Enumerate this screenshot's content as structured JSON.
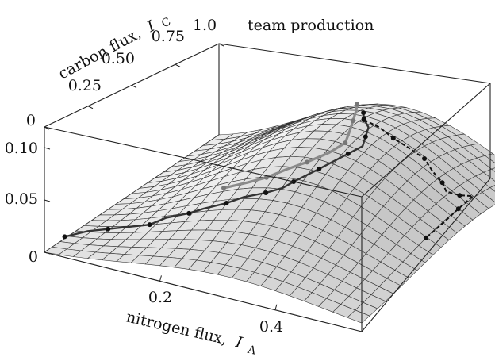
{
  "chart_data": {
    "type": "surface3d",
    "title": "team production",
    "axes": {
      "x": {
        "label": "nitrogen flux,",
        "symbol": "I",
        "subscript": "A",
        "range": [
          0,
          0.55
        ],
        "ticks": [
          "0.2",
          "0.4"
        ]
      },
      "y": {
        "label": "carbon flux,",
        "symbol": "I",
        "subscript": "C",
        "range": [
          0,
          1.0
        ],
        "ticks": [
          "0",
          "0.25",
          "0.50",
          "0.75",
          "1.0"
        ]
      },
      "z": {
        "range": [
          0,
          0.12
        ],
        "ticks": [
          "0",
          "0.05",
          "0.10"
        ]
      }
    },
    "surface_peak": {
      "x": 0.32,
      "y": 0.72,
      "z": 0.09
    },
    "series": [
      {
        "style": "solid-dark",
        "points": [
          [
            0.02,
            0.05,
            0.012
          ],
          [
            0.05,
            0.08,
            0.018
          ],
          [
            0.08,
            0.1,
            0.022
          ],
          [
            0.11,
            0.12,
            0.026
          ],
          [
            0.14,
            0.14,
            0.03
          ],
          [
            0.16,
            0.17,
            0.036
          ],
          [
            0.19,
            0.2,
            0.041
          ],
          [
            0.21,
            0.22,
            0.046
          ],
          [
            0.24,
            0.25,
            0.052
          ],
          [
            0.26,
            0.28,
            0.057
          ],
          [
            0.29,
            0.31,
            0.062
          ],
          [
            0.31,
            0.34,
            0.066
          ],
          [
            0.32,
            0.37,
            0.07
          ],
          [
            0.33,
            0.41,
            0.073
          ],
          [
            0.34,
            0.45,
            0.076
          ],
          [
            0.35,
            0.5,
            0.079
          ],
          [
            0.36,
            0.55,
            0.082
          ],
          [
            0.37,
            0.6,
            0.085
          ],
          [
            0.36,
            0.65,
            0.087
          ],
          [
            0.35,
            0.7,
            0.089
          ],
          [
            0.33,
            0.74,
            0.09
          ],
          [
            0.32,
            0.77,
            0.091
          ]
        ]
      },
      {
        "style": "solid-gray",
        "points": [
          [
            0.22,
            0.3,
            0.058
          ],
          [
            0.25,
            0.34,
            0.063
          ],
          [
            0.27,
            0.38,
            0.066
          ],
          [
            0.29,
            0.43,
            0.071
          ],
          [
            0.31,
            0.48,
            0.075
          ],
          [
            0.33,
            0.54,
            0.08
          ],
          [
            0.34,
            0.6,
            0.084
          ],
          [
            0.33,
            0.66,
            0.088
          ],
          [
            0.32,
            0.71,
            0.09
          ],
          [
            0.31,
            0.76,
            0.092
          ],
          [
            0.3,
            0.8,
            0.093
          ]
        ]
      },
      {
        "style": "dashed",
        "points": [
          [
            0.33,
            0.74,
            0.089
          ],
          [
            0.36,
            0.73,
            0.087
          ],
          [
            0.39,
            0.71,
            0.083
          ],
          [
            0.42,
            0.7,
            0.079
          ],
          [
            0.45,
            0.69,
            0.074
          ],
          [
            0.47,
            0.67,
            0.067
          ],
          [
            0.49,
            0.66,
            0.06
          ],
          [
            0.5,
            0.65,
            0.054
          ],
          [
            0.52,
            0.66,
            0.052
          ],
          [
            0.54,
            0.67,
            0.053
          ],
          [
            0.53,
            0.62,
            0.045
          ],
          [
            0.52,
            0.56,
            0.036
          ],
          [
            0.51,
            0.5,
            0.028
          ]
        ]
      }
    ]
  }
}
